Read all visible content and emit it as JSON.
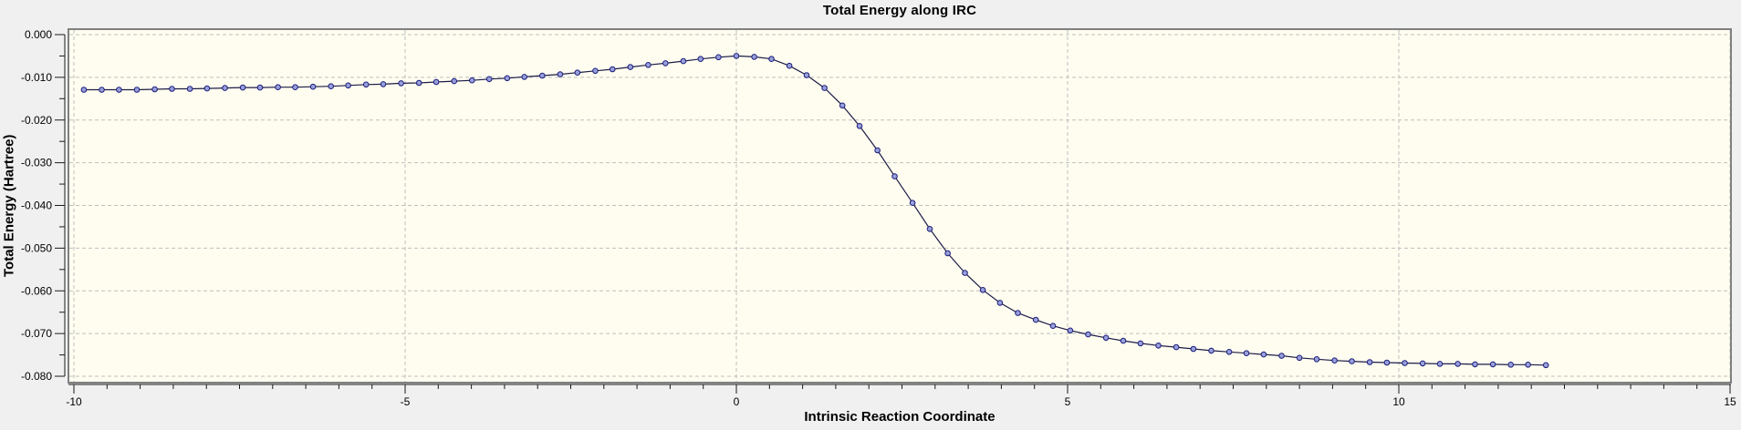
{
  "chart_data": {
    "type": "line",
    "title": "Total Energy along IRC",
    "xlabel": "Intrinsic Reaction Coordinate",
    "ylabel": "Total Energy (Hartree)",
    "xlim": [
      -10,
      15
    ],
    "ylim": [
      -0.08,
      0.0
    ],
    "grid": "dashed-major-both-axes",
    "legend": "none",
    "x_ticks": {
      "major_values": [
        -10,
        -5,
        0,
        5,
        10,
        15
      ],
      "major_labels": [
        "-10",
        "-5",
        "0",
        "5",
        "10",
        "15"
      ],
      "minor_step": 0.5
    },
    "y_ticks": {
      "major_values": [
        0.0,
        -0.01,
        -0.02,
        -0.03,
        -0.04,
        -0.05,
        -0.06,
        -0.07,
        -0.08
      ],
      "major_labels": [
        "0.000",
        "-0.010",
        "-0.020",
        "-0.030",
        "-0.040",
        "-0.050",
        "-0.060",
        "-0.070",
        "-0.080"
      ],
      "minor_step": 0.005
    },
    "series": [
      {
        "name": "Total Energy",
        "marker": "circle",
        "x": [
          -9.85,
          -9.58,
          -9.32,
          -9.05,
          -8.78,
          -8.52,
          -8.25,
          -7.99,
          -7.72,
          -7.45,
          -7.19,
          -6.92,
          -6.66,
          -6.39,
          -6.12,
          -5.86,
          -5.59,
          -5.33,
          -5.06,
          -4.79,
          -4.53,
          -4.26,
          -3.99,
          -3.73,
          -3.46,
          -3.2,
          -2.93,
          -2.66,
          -2.4,
          -2.13,
          -1.87,
          -1.6,
          -1.33,
          -1.07,
          -0.8,
          -0.54,
          -0.27,
          0.0,
          0.27,
          0.53,
          0.8,
          1.06,
          1.33,
          1.6,
          1.86,
          2.13,
          2.39,
          2.66,
          2.92,
          3.19,
          3.45,
          3.72,
          3.98,
          4.25,
          4.52,
          4.78,
          5.04,
          5.31,
          5.58,
          5.84,
          6.1,
          6.37,
          6.64,
          6.9,
          7.17,
          7.44,
          7.7,
          7.96,
          8.23,
          8.5,
          8.76,
          9.03,
          9.29,
          9.56,
          9.82,
          10.09,
          10.36,
          10.62,
          10.89,
          11.15,
          11.42,
          11.69,
          11.95,
          12.22
        ],
        "y": [
          -0.0129,
          -0.0129,
          -0.0129,
          -0.0129,
          -0.0128,
          -0.0127,
          -0.0127,
          -0.0126,
          -0.0125,
          -0.0124,
          -0.0124,
          -0.0123,
          -0.0123,
          -0.0122,
          -0.0121,
          -0.0119,
          -0.0117,
          -0.0116,
          -0.0114,
          -0.0113,
          -0.0111,
          -0.0109,
          -0.0107,
          -0.0104,
          -0.0102,
          -0.0099,
          -0.0096,
          -0.0093,
          -0.0089,
          -0.0085,
          -0.0081,
          -0.0076,
          -0.0071,
          -0.0067,
          -0.0062,
          -0.0057,
          -0.0053,
          -0.005,
          -0.0052,
          -0.0057,
          -0.0073,
          -0.0095,
          -0.0125,
          -0.0166,
          -0.0214,
          -0.0271,
          -0.0332,
          -0.0394,
          -0.0455,
          -0.0512,
          -0.0558,
          -0.0598,
          -0.0628,
          -0.0652,
          -0.0668,
          -0.0682,
          -0.0693,
          -0.0702,
          -0.071,
          -0.0717,
          -0.0723,
          -0.0728,
          -0.0732,
          -0.0736,
          -0.074,
          -0.0743,
          -0.0746,
          -0.0749,
          -0.0752,
          -0.0757,
          -0.076,
          -0.0763,
          -0.0765,
          -0.0767,
          -0.0768,
          -0.0769,
          -0.077,
          -0.0771,
          -0.0771,
          -0.0772,
          -0.0772,
          -0.0773,
          -0.0773,
          -0.0774
        ]
      }
    ],
    "annotations": {
      "energy_maximum": {
        "x": 0.0,
        "y": -0.005
      },
      "left_plateau_energy": -0.0129,
      "right_plateau_energy": -0.0774
    },
    "colors": {
      "outer_background": "#F0F0F0",
      "plot_background": "#FFFDF0",
      "grid": "#BEBEBE",
      "frame": "#808080",
      "axis_spine": "#1A1A1A",
      "line": "#1C1C46",
      "marker_fill": "#98A0DC",
      "marker_stroke": "#1C1C78",
      "text": "#000000"
    }
  }
}
